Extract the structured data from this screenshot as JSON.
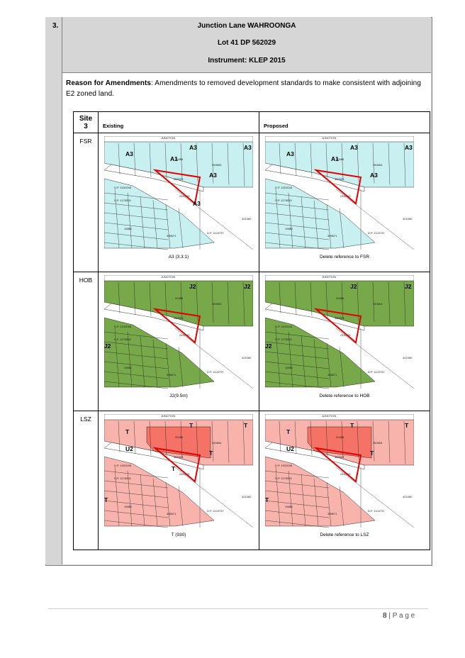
{
  "item_number": "3.",
  "header": {
    "location": "Junction Lane WAHROONGA",
    "lot": "Lot 41 DP 562029",
    "instrument": "Instrument: KLEP 2015"
  },
  "reason": {
    "label": "Reason for Amendments",
    "text": ": Amendments to removed development standards to make consistent with adjoining E2 zoned land."
  },
  "table": {
    "site_label_line1": "Site",
    "site_label_line2": "3",
    "col_existing": "Existing",
    "col_proposed": "Proposed",
    "rows": [
      {
        "label": "FSR",
        "existing_caption": "A3 (3.3:1)",
        "proposed_caption": "Delete reference to FSR",
        "map": {
          "fill": "#c8f0f0",
          "fill_dark": "#c8f0f0",
          "existing_codes": [
            "A3",
            "A1",
            "A3",
            "A3",
            "A3",
            "A3"
          ],
          "proposed_codes": [
            "A3",
            "A1",
            "A3",
            "A3",
            "A3"
          ]
        }
      },
      {
        "label": "HOB",
        "existing_caption": "J2(9.5m)",
        "proposed_caption": "Delete reference to HOB",
        "map": {
          "fill": "#77a84a",
          "fill_dark": "#77a84a",
          "existing_codes": [
            "J2",
            "J2",
            "J2"
          ],
          "proposed_codes": [
            "J2",
            "J2",
            "J2"
          ]
        }
      },
      {
        "label": "LSZ",
        "existing_caption": "T (930)",
        "proposed_caption": "Delete reference to LSZ",
        "map": {
          "fill": "#f8b4ac",
          "fill_dark": "#f47366",
          "existing_codes": [
            "T",
            "T",
            "T",
            "U2",
            "T",
            "T",
            "T"
          ],
          "proposed_codes": [
            "T",
            "T",
            "T",
            "U2",
            "T",
            "T"
          ]
        }
      }
    ],
    "map_labels": {
      "road": "JUNCTION",
      "lot": "562029",
      "dp1": "D.P. 1031048",
      "dp2": "D.P. 1178315",
      "dp3": "19882",
      "dp4": "355671",
      "dp5": "D.P. 1124737",
      "dp6": "250654",
      "dp7": "20488",
      "dp8": "421060",
      "road2": "24/1743"
    }
  },
  "footer": {
    "page_number": "8",
    "page_text": " | P a g e"
  }
}
